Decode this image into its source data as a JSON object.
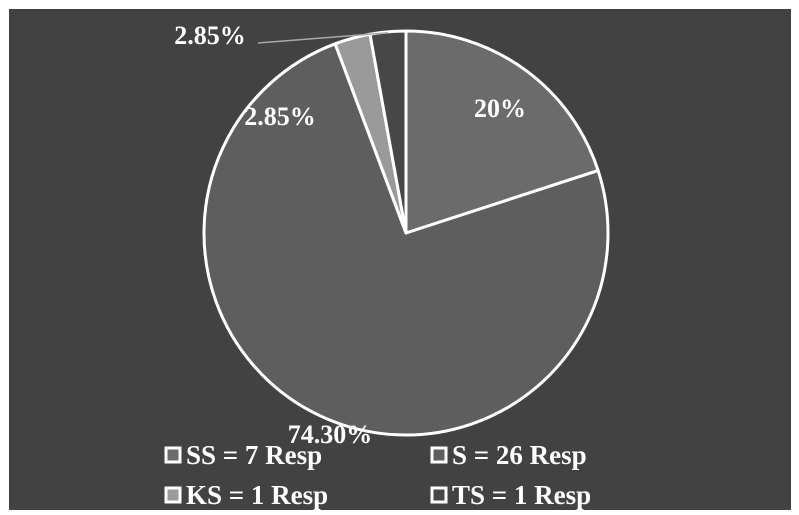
{
  "chart_data": {
    "type": "pie",
    "title": "",
    "slices": [
      {
        "name": "SS = 7 Resp",
        "value": 20,
        "label": "20%",
        "color": "#6b6b6b"
      },
      {
        "name": "S = 26 Resp",
        "value": 74.3,
        "label": "74.30%",
        "color": "#5e5e5e"
      },
      {
        "name": "KS = 1 Resp",
        "value": 2.85,
        "label": "2.85%",
        "color": "#9a9a9a"
      },
      {
        "name": "TS = 1 Resp",
        "value": 2.85,
        "label": "2.85%",
        "color": "#474747"
      }
    ],
    "legend_position": "bottom",
    "colors": {
      "background": "#424242",
      "border": "#ffffff",
      "text": "#ffffff"
    }
  }
}
